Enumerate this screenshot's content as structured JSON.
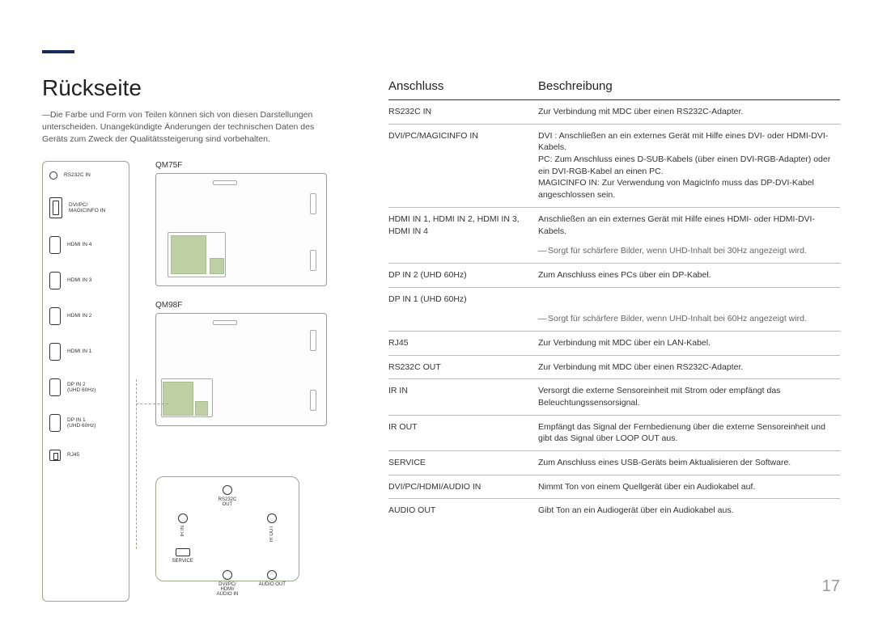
{
  "page": {
    "title": "Rückseite",
    "intro": "Die Farbe und Form von Teilen können sich von diesen Darstellungen unterscheiden. Unangekündigte Änderungen der technischen Daten des Geräts zum Zweck der Qualitätssteigerung sind vorbehalten.",
    "page_number": "17"
  },
  "port_strip": [
    {
      "icon": "round",
      "label": "RS232C IN"
    },
    {
      "icon": "dvi",
      "label": "DVI/PC/\nMAGICINFO IN"
    },
    {
      "icon": "hdmi",
      "label": "HDMI IN 4"
    },
    {
      "icon": "hdmi",
      "label": "HDMI IN 3"
    },
    {
      "icon": "hdmi",
      "label": "HDMI IN 2"
    },
    {
      "icon": "hdmi",
      "label": "HDMI IN 1"
    },
    {
      "icon": "hdmi",
      "label": "DP IN 2\n(UHD 60Hz)"
    },
    {
      "icon": "hdmi",
      "label": "DP IN 1\n(UHD 60Hz)"
    },
    {
      "icon": "rj45",
      "label": "RJ45"
    }
  ],
  "back_panels": {
    "qm75f": "QM75F",
    "qm98f": "QM98F"
  },
  "bottom_panel": {
    "cells": [
      {
        "shape": "none",
        "label": ""
      },
      {
        "shape": "circle",
        "label": "RS232C\nOUT"
      },
      {
        "shape": "none",
        "label": ""
      },
      {
        "shape": "circle_v",
        "label": "IR IN"
      },
      {
        "shape": "none",
        "label": ""
      },
      {
        "shape": "circle_v",
        "label": "IR OUT"
      },
      {
        "shape": "rect",
        "label": "SERVICE"
      },
      {
        "shape": "none",
        "label": ""
      },
      {
        "shape": "none",
        "label": ""
      },
      {
        "shape": "none",
        "label": ""
      },
      {
        "shape": "circle",
        "label": "DVI/PC/\nHDMI/\nAUDIO IN"
      },
      {
        "shape": "circle",
        "label": "AUDIO OUT"
      }
    ]
  },
  "table": {
    "header_port": "Anschluss",
    "header_desc": "Beschreibung",
    "rows": [
      {
        "name": "RS232C IN",
        "desc": "Zur Verbindung mit MDC über einen RS232C-Adapter."
      },
      {
        "name": "DVI/PC/MAGICINFO IN",
        "desc": "DVI : Anschließen an ein externes Gerät mit Hilfe eines DVI- oder HDMI-DVI-Kabels.\nPC: Zum Anschluss eines D-SUB-Kabels (über einen DVI-RGB-Adapter) oder ein DVI-RGB-Kabel an einen PC.\nMAGICINFO IN: Zur Verwendung von MagicInfo muss das DP-DVI-Kabel angeschlossen sein."
      },
      {
        "name": "HDMI IN 1, HDMI IN 2, HDMI IN 3, HDMI IN 4",
        "desc": "Anschließen an ein externes Gerät mit Hilfe eines HDMI- oder HDMI-DVI-Kabels.",
        "note": "Sorgt für schärfere Bilder, wenn UHD-Inhalt bei 30Hz angezeigt wird."
      },
      {
        "name": "DP IN 2 (UHD 60Hz)",
        "desc": "Zum Anschluss eines PCs über ein DP-Kabel."
      },
      {
        "name": "DP IN 1 (UHD 60Hz)",
        "desc": "",
        "note": "Sorgt für schärfere Bilder, wenn UHD-Inhalt bei 60Hz angezeigt wird."
      },
      {
        "name": "RJ45",
        "desc": "Zur Verbindung mit MDC über ein LAN-Kabel."
      },
      {
        "name": "RS232C OUT",
        "desc": "Zur Verbindung mit MDC über einen RS232C-Adapter."
      },
      {
        "name": "IR IN",
        "desc": "Versorgt die externe Sensoreinheit mit Strom oder empfängt das Beleuchtungssensorsignal."
      },
      {
        "name": "IR OUT",
        "desc": "Empfängt das Signal der Fernbedienung über die externe Sensoreinheit und gibt das Signal über LOOP OUT aus."
      },
      {
        "name": "SERVICE",
        "desc": "Zum Anschluss eines USB-Geräts beim Aktualisieren der Software."
      },
      {
        "name": "DVI/PC/HDMI/AUDIO IN",
        "desc": "Nimmt Ton von einem Quellgerät über ein Audiokabel auf."
      },
      {
        "name": "AUDIO OUT",
        "desc": "Gibt Ton an ein Audiogerät über ein Audiokabel aus."
      }
    ]
  },
  "colors": {
    "accent_bar": "#1c2a5a",
    "highlight": "#aac187",
    "border_green": "#9aa88a",
    "text": "#333333",
    "muted": "#666666"
  }
}
